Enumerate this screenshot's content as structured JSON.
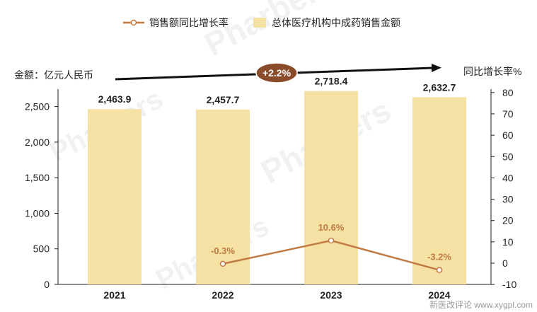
{
  "chart_data": {
    "type": "bar",
    "categories": [
      "2021",
      "2022",
      "2023",
      "2024"
    ],
    "series": [
      {
        "name": "总体医疗机构中成药销售金额",
        "kind": "bar",
        "axis": "left",
        "values": [
          2463.9,
          2457.7,
          2718.4,
          2632.7
        ],
        "labels": [
          "2,463.9",
          "2,457.7",
          "2,718.4",
          "2,632.7"
        ]
      },
      {
        "name": "销售额同比增长率",
        "kind": "line",
        "axis": "right",
        "x": [
          "2022",
          "2023",
          "2024"
        ],
        "values": [
          -0.3,
          10.6,
          -3.2
        ],
        "labels": [
          "-0.3%",
          "10.6%",
          "-3.2%"
        ]
      }
    ],
    "ylabel": "金额：亿元人民币",
    "y2label": "同比增长率%",
    "ylim": [
      0,
      2700
    ],
    "yticks": [
      "0",
      "500",
      "1,000",
      "1,500",
      "2,000",
      "2,500"
    ],
    "y2lim": [
      -10,
      80
    ],
    "y2ticks": [
      "-10",
      "0",
      "10",
      "20",
      "30",
      "40",
      "50",
      "60",
      "70",
      "80"
    ],
    "annotation": "+2.2%",
    "legend_position": "top",
    "colors": {
      "bar": "#f6e1a4",
      "line": "#c07b44",
      "arrow": "#111111",
      "badge": "#8a4b2a"
    }
  },
  "watermark": "Pharbers",
  "site_mark": "新医改评论 www.xygpl.com"
}
